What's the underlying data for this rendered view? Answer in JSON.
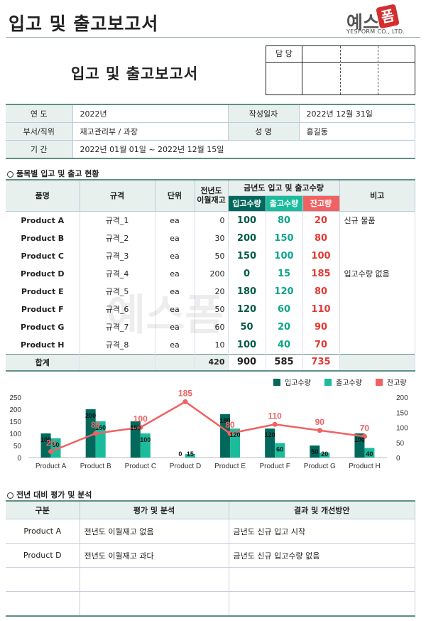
{
  "header": {
    "title": "입고 및 출고보고서",
    "logo_text": "예스",
    "logo_badge": "폼",
    "logo_sub": "YESFORM CO., LTD."
  },
  "doc_title": "입고 및 출고보고서",
  "approval": {
    "label": "담 당"
  },
  "info": {
    "year_label": "연 도",
    "year": "2022년",
    "date_label": "작성일자",
    "date": "2022년 12월 31일",
    "dept_label": "부서/직위",
    "dept": "재고관리부 / 과장",
    "name_label": "성 명",
    "name": "홍길동",
    "period_label": "기 간",
    "period": "2022년 01월 01일 ~ 2022년 12월 15일"
  },
  "section1": {
    "title": "품목별 입고 및 출고 현황"
  },
  "table": {
    "headers": {
      "item": "품명",
      "spec": "규격",
      "unit": "단위",
      "prev": "전년도\n이월재고",
      "group": "금년도 입고 및 출고수량",
      "in": "입고수량",
      "out": "출고수량",
      "rem": "잔고량",
      "note": "비고"
    },
    "rows": [
      {
        "item": "Product A",
        "spec": "규격_1",
        "unit": "ea",
        "prev": "0",
        "in": "100",
        "out": "80",
        "rem": "20",
        "note": "신규 물품"
      },
      {
        "item": "Product B",
        "spec": "규격_2",
        "unit": "ea",
        "prev": "30",
        "in": "200",
        "out": "150",
        "rem": "80",
        "note": ""
      },
      {
        "item": "Product C",
        "spec": "규격_3",
        "unit": "ea",
        "prev": "50",
        "in": "150",
        "out": "100",
        "rem": "100",
        "note": ""
      },
      {
        "item": "Product D",
        "spec": "규격_4",
        "unit": "ea",
        "prev": "200",
        "in": "0",
        "out": "15",
        "rem": "185",
        "note": "입고수량 없음"
      },
      {
        "item": "Product E",
        "spec": "규격_5",
        "unit": "ea",
        "prev": "20",
        "in": "180",
        "out": "120",
        "rem": "80",
        "note": ""
      },
      {
        "item": "Product F",
        "spec": "규격_6",
        "unit": "ea",
        "prev": "50",
        "in": "120",
        "out": "60",
        "rem": "110",
        "note": ""
      },
      {
        "item": "Product G",
        "spec": "규격_7",
        "unit": "ea",
        "prev": "60",
        "in": "50",
        "out": "20",
        "rem": "90",
        "note": ""
      },
      {
        "item": "Product H",
        "spec": "규격_8",
        "unit": "ea",
        "prev": "10",
        "in": "100",
        "out": "40",
        "rem": "70",
        "note": ""
      }
    ],
    "total": {
      "label": "합계",
      "prev": "420",
      "in": "900",
      "out": "585",
      "rem": "735"
    }
  },
  "chart_data": {
    "type": "bar",
    "categories": [
      "Product A",
      "Product B",
      "Product C",
      "Product D",
      "Product E",
      "Product F",
      "Product G",
      "Product H"
    ],
    "series": [
      {
        "name": "입고수량",
        "kind": "bar",
        "color": "#00695c",
        "values": [
          100,
          200,
          150,
          0,
          180,
          120,
          50,
          100
        ]
      },
      {
        "name": "출고수량",
        "kind": "bar",
        "color": "#1abc9c",
        "values": [
          80,
          150,
          100,
          15,
          120,
          60,
          20,
          40
        ]
      },
      {
        "name": "잔고량",
        "kind": "line",
        "color": "#f06262",
        "axis": "right",
        "values": [
          20,
          80,
          100,
          185,
          80,
          110,
          90,
          70
        ]
      }
    ],
    "ylim": [
      0,
      250
    ],
    "yticks": [
      0,
      50,
      100,
      150,
      200,
      250
    ],
    "ylim_right": [
      0,
      200
    ],
    "yticks_right": [
      0,
      50,
      100,
      150,
      200
    ],
    "legend": "top-right",
    "grid": false
  },
  "section2": {
    "title": "전년 대비 평가 및 분석"
  },
  "eval": {
    "headers": [
      "구분",
      "평가 및 분석",
      "결과 및 개선방안"
    ],
    "rows": [
      [
        "Product A",
        "전년도 이월재고 없음",
        "금년도 신규 입고 시작"
      ],
      [
        "Product D",
        "전년도 이월재고 과다",
        "금년도 신규 입고수량 없음"
      ],
      [
        "",
        "",
        ""
      ],
      [
        "",
        "",
        ""
      ]
    ]
  },
  "watermark": "예스폼"
}
